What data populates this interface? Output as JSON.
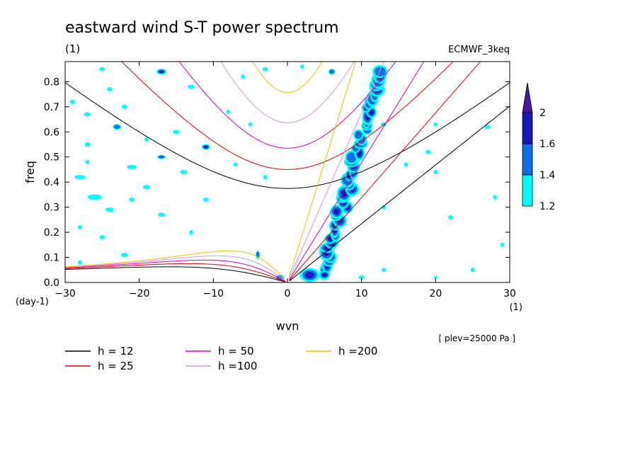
{
  "chart_data": {
    "type": "line",
    "title": "eastward wind S-T power spectrum",
    "subtitle_left": "(1)",
    "subtitle_right": "ECMWF_3keq",
    "xlabel": "wvn",
    "ylabel": "freq",
    "x_unit": "(1)",
    "y_unit": "(day-1)",
    "note": "[ plev=25000 Pa ]",
    "xlim": [
      -30,
      30
    ],
    "ylim": [
      0,
      0.88
    ],
    "x_ticks": [
      -30,
      -20,
      -10,
      0,
      10,
      20,
      30
    ],
    "y_ticks": [
      0.0,
      0.1,
      0.2,
      0.3,
      0.4,
      0.5,
      0.6,
      0.7,
      0.8
    ],
    "y_tick_labels": [
      "0.0",
      "0.1",
      "0.2",
      "0.3",
      "0.4",
      "0.5",
      "0.6",
      "0.7",
      "0.8"
    ],
    "colorbar": {
      "levels": [
        1.2,
        1.4,
        1.6,
        2
      ],
      "colors": [
        "#00ffff",
        "#0a6ee8",
        "#1818b8",
        "#4a16aa"
      ],
      "labels": [
        "1.2",
        "1.4",
        "1.6",
        "2"
      ]
    },
    "series": [
      {
        "name": "h = 12",
        "color": "#000000",
        "h": 12
      },
      {
        "name": "h = 25",
        "color": "#e00000",
        "h": 25
      },
      {
        "name": "h = 50",
        "color": "#d000c0",
        "h": 50
      },
      {
        "name": "h =100",
        "color": "#e090e0",
        "h": 100
      },
      {
        "name": "h =200",
        "color": "#f0c000",
        "h": 200
      }
    ],
    "grid": false,
    "legend_placement": "bottom-left"
  }
}
